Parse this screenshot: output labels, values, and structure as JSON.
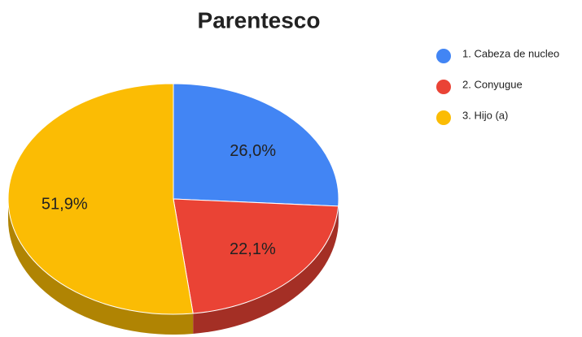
{
  "chart_data": {
    "type": "pie3d",
    "title": "Parentesco",
    "categories": [
      "1. Cabeza de nucleo",
      "2. Conyugue",
      "3. Hijo (a)"
    ],
    "values": [
      26.0,
      22.1,
      51.9
    ],
    "value_labels": [
      "26,0%",
      "22,1%",
      "51,9%"
    ],
    "colors": [
      "#4285f4",
      "#ea4335",
      "#fbbc04"
    ],
    "legend": "right"
  }
}
